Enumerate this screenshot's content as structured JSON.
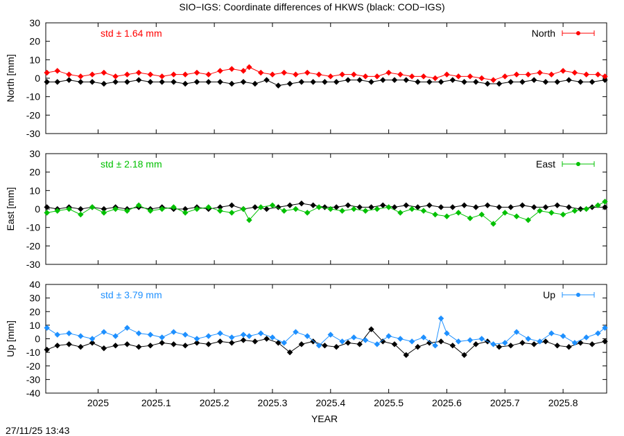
{
  "title": "SIO−IGS: Coordinate differences of HKWS (black: COD−IGS)",
  "xlabel": "YEAR",
  "timestamp": "27/11/25 13:43",
  "colors": {
    "north": "#ff0000",
    "east": "#00c000",
    "up": "#1e90ff",
    "reference": "#000000"
  },
  "chart_data": [
    {
      "type": "scatter",
      "name": "north",
      "ylabel": "North [mm]",
      "legend": "North",
      "std_label": "std ± 1.64 mm",
      "xlim": [
        2024.91,
        2025.875
      ],
      "ylim": [
        -30,
        30
      ],
      "yticks": [
        -30,
        -20,
        -10,
        0,
        10,
        20,
        30
      ],
      "xticks": [
        2025,
        2025.1,
        2025.2,
        2025.3,
        2025.4,
        2025.5,
        2025.6,
        2025.7,
        2025.8
      ],
      "series": [
        {
          "name": "SIO−IGS",
          "color": "#ff0000",
          "x": [
            2024.912,
            2024.93,
            2024.95,
            2024.97,
            2024.99,
            2025.01,
            2025.03,
            2025.05,
            2025.07,
            2025.09,
            2025.11,
            2025.13,
            2025.15,
            2025.17,
            2025.19,
            2025.21,
            2025.23,
            2025.25,
            2025.26,
            2025.28,
            2025.3,
            2025.32,
            2025.34,
            2025.36,
            2025.38,
            2025.4,
            2025.42,
            2025.44,
            2025.46,
            2025.48,
            2025.5,
            2025.52,
            2025.54,
            2025.56,
            2025.58,
            2025.6,
            2025.62,
            2025.64,
            2025.66,
            2025.68,
            2025.7,
            2025.72,
            2025.74,
            2025.76,
            2025.78,
            2025.8,
            2025.82,
            2025.84,
            2025.86,
            2025.872
          ],
          "y": [
            3,
            4,
            2,
            1,
            2,
            3,
            1,
            2,
            3,
            2,
            1,
            2,
            2,
            3,
            2,
            4,
            5,
            4,
            6,
            3,
            2,
            3,
            2,
            3,
            2,
            1,
            2,
            2,
            1,
            1,
            3,
            2,
            1,
            1,
            0,
            2,
            1,
            1,
            0,
            -1,
            1,
            2,
            2,
            3,
            2,
            4,
            3,
            2,
            2,
            1
          ]
        },
        {
          "name": "COD−IGS",
          "color": "#000000",
          "x": [
            2024.912,
            2024.93,
            2024.95,
            2024.97,
            2024.99,
            2025.01,
            2025.03,
            2025.05,
            2025.07,
            2025.09,
            2025.11,
            2025.13,
            2025.15,
            2025.17,
            2025.19,
            2025.21,
            2025.23,
            2025.25,
            2025.27,
            2025.29,
            2025.31,
            2025.33,
            2025.35,
            2025.37,
            2025.39,
            2025.41,
            2025.43,
            2025.45,
            2025.47,
            2025.49,
            2025.51,
            2025.53,
            2025.55,
            2025.57,
            2025.59,
            2025.61,
            2025.63,
            2025.65,
            2025.67,
            2025.69,
            2025.71,
            2025.73,
            2025.75,
            2025.77,
            2025.79,
            2025.81,
            2025.83,
            2025.85,
            2025.872
          ],
          "y": [
            -2,
            -2,
            -1,
            -2,
            -2,
            -3,
            -2,
            -2,
            -1,
            -2,
            -2,
            -2,
            -3,
            -2,
            -2,
            -2,
            -3,
            -2,
            -3,
            -1,
            -4,
            -3,
            -2,
            -2,
            -2,
            -2,
            -1,
            -1,
            -2,
            -1,
            -1,
            -1,
            -2,
            -2,
            -2,
            -1,
            -2,
            -2,
            -3,
            -3,
            -2,
            -2,
            -1,
            -2,
            -2,
            -1,
            -2,
            -2,
            -1
          ]
        }
      ]
    },
    {
      "type": "scatter",
      "name": "east",
      "ylabel": "East [mm]",
      "legend": "East",
      "std_label": "std ± 2.18 mm",
      "xlim": [
        2024.91,
        2025.875
      ],
      "ylim": [
        -30,
        30
      ],
      "yticks": [
        -30,
        -20,
        -10,
        0,
        10,
        20,
        30
      ],
      "xticks": [
        2025,
        2025.1,
        2025.2,
        2025.3,
        2025.4,
        2025.5,
        2025.6,
        2025.7,
        2025.8
      ],
      "series": [
        {
          "name": "SIO−IGS",
          "color": "#00c000",
          "x": [
            2024.912,
            2024.93,
            2024.95,
            2024.97,
            2024.99,
            2025.01,
            2025.03,
            2025.05,
            2025.07,
            2025.09,
            2025.11,
            2025.13,
            2025.15,
            2025.17,
            2025.19,
            2025.21,
            2025.23,
            2025.25,
            2025.26,
            2025.28,
            2025.3,
            2025.32,
            2025.34,
            2025.36,
            2025.38,
            2025.4,
            2025.42,
            2025.44,
            2025.46,
            2025.48,
            2025.5,
            2025.52,
            2025.54,
            2025.56,
            2025.58,
            2025.6,
            2025.62,
            2025.64,
            2025.66,
            2025.68,
            2025.7,
            2025.72,
            2025.74,
            2025.76,
            2025.78,
            2025.8,
            2025.82,
            2025.84,
            2025.86,
            2025.872
          ],
          "y": [
            -2,
            -1,
            0,
            -3,
            1,
            -2,
            0,
            -1,
            2,
            -1,
            0,
            1,
            -2,
            0,
            1,
            -1,
            -2,
            0,
            -6,
            1,
            2,
            -1,
            0,
            -2,
            1,
            0,
            -1,
            0,
            -1,
            0,
            1,
            -2,
            0,
            -1,
            -3,
            -4,
            -2,
            -5,
            -3,
            -8,
            -2,
            -4,
            -6,
            -1,
            -2,
            -3,
            -1,
            0,
            2,
            4
          ]
        },
        {
          "name": "COD−IGS",
          "color": "#000000",
          "x": [
            2024.912,
            2024.93,
            2024.95,
            2024.97,
            2024.99,
            2025.01,
            2025.03,
            2025.05,
            2025.07,
            2025.09,
            2025.11,
            2025.13,
            2025.15,
            2025.17,
            2025.19,
            2025.21,
            2025.23,
            2025.25,
            2025.27,
            2025.29,
            2025.31,
            2025.33,
            2025.35,
            2025.37,
            2025.39,
            2025.41,
            2025.43,
            2025.45,
            2025.47,
            2025.49,
            2025.51,
            2025.53,
            2025.55,
            2025.57,
            2025.59,
            2025.61,
            2025.63,
            2025.65,
            2025.67,
            2025.69,
            2025.71,
            2025.73,
            2025.75,
            2025.77,
            2025.79,
            2025.81,
            2025.83,
            2025.85,
            2025.872
          ],
          "y": [
            1,
            0,
            1,
            0,
            1,
            0,
            1,
            0,
            1,
            0,
            1,
            0,
            0,
            1,
            0,
            1,
            2,
            0,
            1,
            0,
            1,
            2,
            3,
            2,
            1,
            1,
            2,
            1,
            1,
            2,
            1,
            2,
            1,
            2,
            1,
            1,
            2,
            1,
            2,
            1,
            1,
            2,
            1,
            1,
            2,
            1,
            0,
            1,
            1
          ]
        }
      ]
    },
    {
      "type": "scatter",
      "name": "up",
      "ylabel": "Up [mm]",
      "legend": "Up",
      "std_label": "std ± 3.79 mm",
      "xlim": [
        2024.91,
        2025.875
      ],
      "ylim": [
        -40,
        40
      ],
      "yticks": [
        -40,
        -30,
        -20,
        -10,
        0,
        10,
        20,
        30,
        40
      ],
      "xticks": [
        2025,
        2025.1,
        2025.2,
        2025.3,
        2025.4,
        2025.5,
        2025.6,
        2025.7,
        2025.8
      ],
      "xticklabels": [
        "2025",
        "2025.1",
        "2025.2",
        "2025.3",
        "2025.4",
        "2025.5",
        "2025.6",
        "2025.7",
        "2025.8"
      ],
      "series": [
        {
          "name": "SIO−IGS",
          "color": "#1e90ff",
          "x": [
            2024.912,
            2024.93,
            2024.95,
            2024.97,
            2024.99,
            2025.01,
            2025.03,
            2025.05,
            2025.07,
            2025.09,
            2025.11,
            2025.13,
            2025.15,
            2025.17,
            2025.19,
            2025.21,
            2025.23,
            2025.25,
            2025.26,
            2025.28,
            2025.3,
            2025.32,
            2025.34,
            2025.36,
            2025.38,
            2025.4,
            2025.42,
            2025.44,
            2025.46,
            2025.48,
            2025.5,
            2025.52,
            2025.54,
            2025.56,
            2025.58,
            2025.59,
            2025.6,
            2025.62,
            2025.64,
            2025.66,
            2025.68,
            2025.7,
            2025.72,
            2025.74,
            2025.76,
            2025.78,
            2025.8,
            2025.82,
            2025.84,
            2025.86,
            2025.872
          ],
          "y": [
            8,
            3,
            4,
            2,
            0,
            5,
            2,
            8,
            4,
            3,
            1,
            5,
            3,
            0,
            2,
            4,
            1,
            3,
            2,
            4,
            1,
            -3,
            5,
            2,
            -5,
            3,
            -2,
            1,
            -1,
            -4,
            2,
            0,
            -2,
            1,
            -5,
            15,
            4,
            -2,
            -1,
            0,
            -4,
            -3,
            5,
            0,
            -2,
            4,
            2,
            -3,
            1,
            4,
            8
          ]
        },
        {
          "name": "COD−IGS",
          "color": "#000000",
          "x": [
            2024.912,
            2024.93,
            2024.95,
            2024.97,
            2024.99,
            2025.01,
            2025.03,
            2025.05,
            2025.07,
            2025.09,
            2025.11,
            2025.13,
            2025.15,
            2025.17,
            2025.19,
            2025.21,
            2025.23,
            2025.25,
            2025.27,
            2025.29,
            2025.31,
            2025.33,
            2025.35,
            2025.37,
            2025.39,
            2025.41,
            2025.43,
            2025.45,
            2025.47,
            2025.49,
            2025.51,
            2025.53,
            2025.55,
            2025.57,
            2025.59,
            2025.61,
            2025.63,
            2025.65,
            2025.67,
            2025.69,
            2025.71,
            2025.73,
            2025.75,
            2025.77,
            2025.79,
            2025.81,
            2025.83,
            2025.85,
            2025.872
          ],
          "y": [
            -8,
            -5,
            -4,
            -6,
            -3,
            -7,
            -5,
            -4,
            -6,
            -5,
            -3,
            -4,
            -5,
            -3,
            -4,
            -2,
            -3,
            -1,
            -2,
            0,
            -3,
            -10,
            -4,
            -2,
            -5,
            -6,
            -3,
            -4,
            7,
            -2,
            -4,
            -12,
            -6,
            -3,
            -2,
            -5,
            -12,
            -4,
            -2,
            -6,
            -5,
            -3,
            -4,
            -2,
            -5,
            -6,
            -3,
            -4,
            -2
          ]
        }
      ]
    }
  ]
}
